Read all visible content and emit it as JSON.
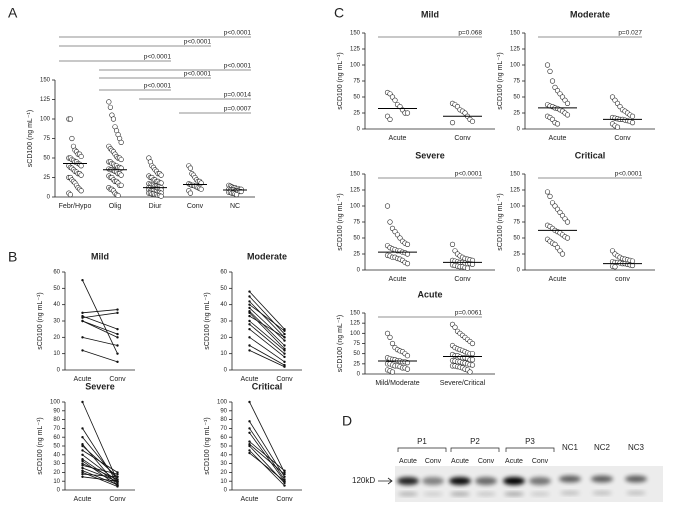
{
  "panel_labels": [
    "A",
    "B",
    "C",
    "D"
  ],
  "chart_data": [
    {
      "type": "dotplot",
      "ylabel": "sCD100 (ng mL⁻¹)",
      "categories": [
        "Febr/Hypo",
        "Olig",
        "Diur",
        "Conv",
        "NC"
      ],
      "values": [
        [
          100,
          100,
          75,
          65,
          60,
          58,
          55,
          55,
          52,
          50,
          50,
          48,
          47,
          45,
          45,
          43,
          42,
          40,
          40,
          38,
          37,
          35,
          33,
          32,
          30,
          30,
          28,
          25,
          25,
          22,
          20,
          18,
          15,
          12,
          10,
          8,
          5,
          3
        ],
        [
          122,
          115,
          105,
          100,
          90,
          85,
          80,
          75,
          70,
          65,
          62,
          60,
          58,
          55,
          52,
          50,
          50,
          48,
          45,
          45,
          43,
          42,
          40,
          40,
          38,
          38,
          37,
          36,
          35,
          35,
          34,
          33,
          32,
          30,
          30,
          28,
          27,
          25,
          25,
          22,
          20,
          20,
          18,
          15,
          15,
          12,
          10,
          10,
          8,
          5,
          3,
          2
        ],
        [
          50,
          45,
          40,
          38,
          35,
          33,
          30,
          30,
          28,
          27,
          25,
          25,
          22,
          22,
          20,
          20,
          18,
          18,
          17,
          16,
          15,
          15,
          14,
          14,
          13,
          13,
          12,
          12,
          12,
          11,
          11,
          10,
          10,
          10,
          9,
          9,
          9,
          8,
          8,
          8,
          7,
          7,
          6,
          6,
          5,
          5,
          5,
          4,
          4,
          3,
          3,
          2,
          2,
          1
        ],
        [
          40,
          37,
          30,
          28,
          25,
          22,
          20,
          20,
          18,
          17,
          16,
          15,
          15,
          14,
          13,
          12,
          11,
          10,
          8,
          5
        ],
        [
          15,
          14,
          13,
          12,
          12,
          11,
          11,
          10,
          10,
          10,
          9,
          9,
          9,
          8,
          8,
          8,
          7,
          7,
          6,
          6,
          5,
          5,
          4,
          3
        ]
      ],
      "medians": [
        43,
        35,
        12,
        16,
        9
      ],
      "comparisons": [
        {
          "label": "p<0.0001",
          "between": [
            "Febr/Hypo",
            "NC"
          ]
        },
        {
          "label": "p<0.0001",
          "between": [
            "Febr/Hypo",
            "Conv"
          ]
        },
        {
          "label": "p<0.0001",
          "between": [
            "Febr/Hypo",
            "Diur"
          ]
        },
        {
          "label": "p<0.0001",
          "between": [
            "Olig",
            "NC"
          ]
        },
        {
          "label": "p<0.0001",
          "between": [
            "Olig",
            "Conv"
          ]
        },
        {
          "label": "p<0.0001",
          "between": [
            "Olig",
            "Diur"
          ]
        },
        {
          "label": "p=0.0014",
          "between": [
            "Diur",
            "NC"
          ]
        },
        {
          "label": "p=0.0007",
          "between": [
            "Conv",
            "NC"
          ]
        }
      ],
      "ylim": [
        0,
        150
      ],
      "yticks": [
        0,
        25,
        50,
        75,
        100,
        125,
        150
      ]
    },
    {
      "type": "paired-line",
      "title": "Mild",
      "ylabel": "sCD100 (ng mL⁻¹)",
      "categories": [
        "Acute",
        "Conv"
      ],
      "values": [
        [
          55,
          10
        ],
        [
          35,
          37
        ],
        [
          33,
          25
        ],
        [
          32,
          35
        ],
        [
          30,
          20
        ],
        [
          30,
          22
        ],
        [
          20,
          15
        ],
        [
          12,
          5
        ]
      ],
      "ylim": [
        0,
        60
      ],
      "yticks": [
        0,
        10,
        20,
        30,
        40,
        50,
        60
      ]
    },
    {
      "type": "paired-line",
      "title": "Moderate",
      "ylabel": "sCD100 (ng mL⁻¹)",
      "categories": [
        "Acute",
        "Conv"
      ],
      "values": [
        [
          48,
          25
        ],
        [
          45,
          22
        ],
        [
          42,
          20
        ],
        [
          40,
          24
        ],
        [
          38,
          18
        ],
        [
          36,
          15
        ],
        [
          35,
          13
        ],
        [
          33,
          20
        ],
        [
          30,
          12
        ],
        [
          28,
          10
        ],
        [
          25,
          8
        ],
        [
          20,
          5
        ],
        [
          15,
          3
        ],
        [
          12,
          2
        ]
      ],
      "ylim": [
        0,
        60
      ],
      "yticks": [
        0,
        10,
        20,
        30,
        40,
        50,
        60
      ]
    },
    {
      "type": "paired-line",
      "title": "Severe",
      "ylabel": "sCD100 (ng mL⁻¹)",
      "categories": [
        "Acute",
        "Conv"
      ],
      "values": [
        [
          100,
          10
        ],
        [
          70,
          8
        ],
        [
          60,
          12
        ],
        [
          52,
          5
        ],
        [
          50,
          15
        ],
        [
          45,
          20
        ],
        [
          40,
          10
        ],
        [
          35,
          8
        ],
        [
          33,
          5
        ],
        [
          30,
          12
        ],
        [
          28,
          18
        ],
        [
          25,
          10
        ],
        [
          22,
          6
        ],
        [
          20,
          4
        ],
        [
          18,
          15
        ],
        [
          15,
          10
        ]
      ],
      "ylim": [
        0,
        100
      ],
      "yticks": [
        0,
        10,
        20,
        30,
        40,
        50,
        60,
        70,
        80,
        90,
        100
      ]
    },
    {
      "type": "paired-line",
      "title": "Critical",
      "ylabel": "sCD100 (ng mL⁻¹)",
      "categories": [
        "Acute",
        "Conv"
      ],
      "values": [
        [
          100,
          20
        ],
        [
          78,
          15
        ],
        [
          70,
          12
        ],
        [
          65,
          10
        ],
        [
          55,
          22
        ],
        [
          52,
          18
        ],
        [
          50,
          8
        ],
        [
          45,
          5
        ],
        [
          42,
          10
        ]
      ],
      "ylim": [
        0,
        100
      ],
      "yticks": [
        0,
        10,
        20,
        30,
        40,
        50,
        60,
        70,
        80,
        90,
        100
      ]
    },
    {
      "type": "dotplot",
      "title": "Mild",
      "ylabel": "sCD100 (ng mL⁻¹)",
      "categories": [
        "Acute",
        "Conv"
      ],
      "values": [
        [
          57,
          55,
          50,
          45,
          38,
          35,
          30,
          25,
          25,
          20,
          15
        ],
        [
          40,
          38,
          35,
          30,
          28,
          25,
          20,
          15,
          12,
          10
        ]
      ],
      "medians": [
        32,
        20
      ],
      "comparisons": [
        {
          "label": "p=0.068",
          "between": [
            "Acute",
            "Conv"
          ]
        }
      ],
      "ylim": [
        0,
        150
      ],
      "yticks": [
        0,
        25,
        50,
        75,
        100,
        125,
        150
      ]
    },
    {
      "type": "dotplot",
      "title": "Moderate",
      "ylabel": "sCD100 (ng mL⁻¹)",
      "categories": [
        "Acute",
        "Conv"
      ],
      "values": [
        [
          100,
          90,
          75,
          65,
          60,
          55,
          50,
          45,
          40,
          38,
          36,
          35,
          33,
          32,
          30,
          28,
          25,
          22,
          20,
          18,
          15,
          10,
          8
        ],
        [
          50,
          45,
          40,
          35,
          30,
          28,
          25,
          22,
          20,
          18,
          17,
          16,
          15,
          15,
          14,
          13,
          12,
          10,
          8,
          5,
          3
        ]
      ],
      "medians": [
        33,
        15
      ],
      "comparisons": [
        {
          "label": "p=0.027",
          "between": [
            "Acute",
            "Conv"
          ]
        }
      ],
      "ylim": [
        0,
        150
      ],
      "yticks": [
        0,
        25,
        50,
        75,
        100,
        125,
        150
      ]
    },
    {
      "type": "dotplot",
      "title": "Severe",
      "ylabel": "sCD100 (ng mL⁻¹)",
      "categories": [
        "Acute",
        "Conv"
      ],
      "values": [
        [
          100,
          75,
          65,
          60,
          55,
          50,
          45,
          42,
          40,
          38,
          35,
          33,
          32,
          30,
          30,
          28,
          27,
          25,
          23,
          22,
          20,
          20,
          18,
          17,
          15,
          12,
          10
        ],
        [
          40,
          30,
          25,
          22,
          20,
          18,
          17,
          16,
          15,
          15,
          14,
          13,
          12,
          12,
          11,
          10,
          10,
          9,
          8,
          7,
          6,
          5,
          5,
          4,
          3
        ]
      ],
      "medians": [
        28,
        12
      ],
      "comparisons": [
        {
          "label": "p<0.0001",
          "between": [
            "Acute",
            "Conv"
          ]
        }
      ],
      "ylim": [
        0,
        150
      ],
      "yticks": [
        0,
        25,
        50,
        75,
        100,
        125,
        150
      ]
    },
    {
      "type": "dotplot",
      "title": "Critical",
      "ylabel": "sCD100 (ng mL⁻¹)",
      "categories": [
        "Acute",
        "conv"
      ],
      "values": [
        [
          122,
          115,
          105,
          100,
          95,
          90,
          85,
          80,
          75,
          70,
          68,
          65,
          62,
          60,
          58,
          55,
          52,
          50,
          48,
          45,
          42,
          40,
          35,
          30,
          25
        ],
        [
          30,
          25,
          22,
          20,
          18,
          17,
          16,
          15,
          14,
          13,
          12,
          12,
          11,
          10,
          10,
          9,
          8,
          7,
          6,
          5
        ]
      ],
      "medians": [
        62,
        10
      ],
      "comparisons": [
        {
          "label": "p<0.0001",
          "between": [
            "Acute",
            "conv"
          ]
        }
      ],
      "ylim": [
        0,
        150
      ],
      "yticks": [
        0,
        25,
        50,
        75,
        100,
        125,
        150
      ]
    },
    {
      "type": "dotplot",
      "title": "Acute",
      "ylabel": "sCD100 (ng mL⁻¹)",
      "categories": [
        "Mild/Moderate",
        "Severe/Critical"
      ],
      "values": [
        [
          100,
          90,
          75,
          65,
          60,
          57,
          55,
          50,
          45,
          40,
          38,
          36,
          35,
          33,
          32,
          30,
          30,
          28,
          25,
          25,
          22,
          20,
          20,
          18,
          15,
          15,
          12,
          10,
          8,
          5
        ],
        [
          122,
          115,
          105,
          100,
          95,
          90,
          85,
          80,
          75,
          70,
          65,
          62,
          60,
          58,
          55,
          52,
          50,
          50,
          48,
          45,
          45,
          42,
          40,
          40,
          38,
          35,
          35,
          33,
          32,
          30,
          30,
          28,
          27,
          25,
          23,
          22,
          20,
          20,
          18,
          17,
          15,
          12,
          10,
          5
        ]
      ],
      "medians": [
        32,
        43
      ],
      "comparisons": [
        {
          "label": "p=0.0061",
          "between": [
            "Mild/Moderate",
            "Severe/Critical"
          ]
        }
      ],
      "ylim": [
        0,
        150
      ],
      "yticks": [
        0,
        25,
        50,
        75,
        100,
        125,
        150
      ]
    }
  ],
  "blot": {
    "groups": [
      "P1",
      "P2",
      "P3"
    ],
    "lanes": [
      "Acute",
      "Conv",
      "Acute",
      "Conv",
      "Acute",
      "Conv"
    ],
    "controls": [
      "NC1",
      "NC2",
      "NC3"
    ],
    "marker": "120kD"
  }
}
